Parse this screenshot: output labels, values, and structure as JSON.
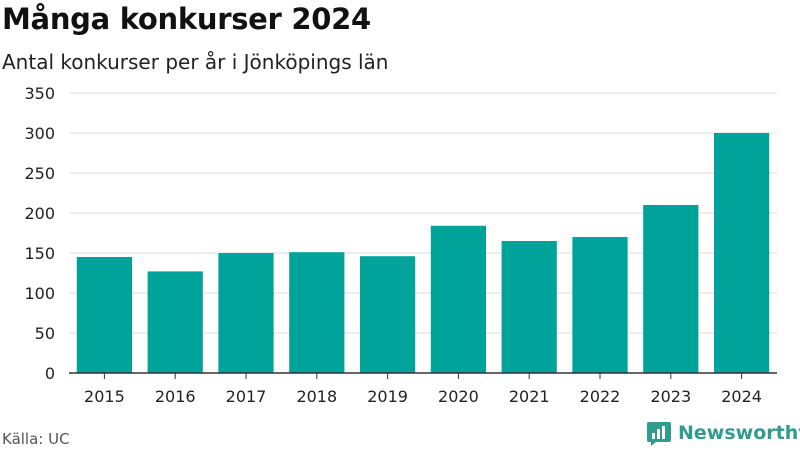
{
  "title": "Många konkurser 2024",
  "subtitle": "Antal konkurser per år i Jönköpings län",
  "source": "Källa: UC",
  "brand": {
    "name": "Newsworthy",
    "icon": "newsworthy-logo-icon"
  },
  "colors": {
    "bar": "#00a39a",
    "grid": "#dddddd",
    "axis": "#333333",
    "brand": "#2f9c8e"
  },
  "chart_data": {
    "type": "bar",
    "title": "Många konkurser 2024",
    "subtitle": "Antal konkurser per år i Jönköpings län",
    "xlabel": "",
    "ylabel": "",
    "categories": [
      "2015",
      "2016",
      "2017",
      "2018",
      "2019",
      "2020",
      "2021",
      "2022",
      "2023",
      "2024"
    ],
    "values": [
      145,
      127,
      150,
      151,
      146,
      184,
      165,
      170,
      210,
      300
    ],
    "ylim": [
      0,
      350
    ],
    "yticks": [
      0,
      50,
      100,
      150,
      200,
      250,
      300,
      350
    ],
    "grid": true,
    "legend": "none"
  }
}
